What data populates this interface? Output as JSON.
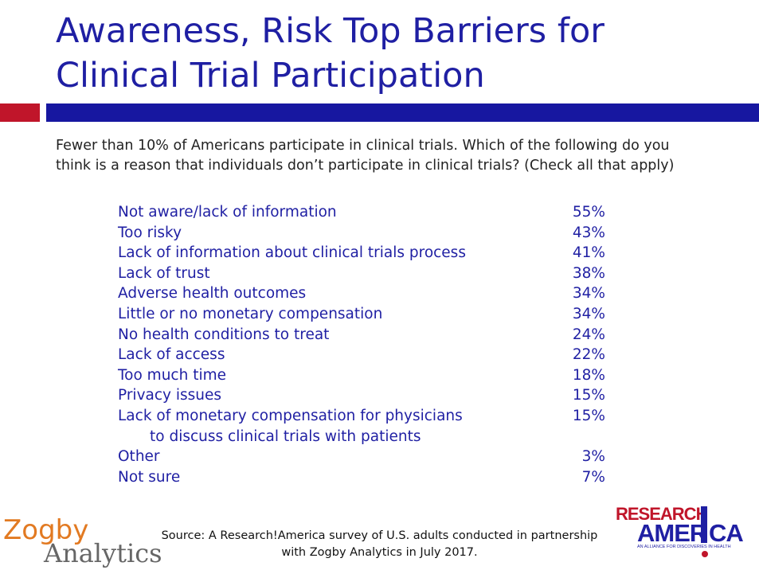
{
  "header": {
    "title_lines": [
      "Awareness, Risk Top Barriers for",
      "Clinical Trial Participation"
    ]
  },
  "question_lines": [
    "Fewer than 10% of Americans participate in clinical trials. Which of the following do you",
    "think is a reason that individuals don’t participate in clinical trials? (Check all that apply)"
  ],
  "table": {
    "rows": [
      {
        "label": [
          "Not aware/lack of information"
        ],
        "value": "55%"
      },
      {
        "label": [
          "Too risky"
        ],
        "value": "43%"
      },
      {
        "label": [
          "Lack of information about clinical trials process"
        ],
        "value": "41%"
      },
      {
        "label": [
          "Lack of trust"
        ],
        "value": "38%"
      },
      {
        "label": [
          "Adverse health outcomes"
        ],
        "value": "34%"
      },
      {
        "label": [
          "Little or no monetary compensation"
        ],
        "value": "34%"
      },
      {
        "label": [
          "No health conditions to treat"
        ],
        "value": "24%"
      },
      {
        "label": [
          "Lack of access"
        ],
        "value": "22%"
      },
      {
        "label": [
          "Too much time"
        ],
        "value": "18%"
      },
      {
        "label": [
          "Privacy issues"
        ],
        "value": "15%"
      },
      {
        "label": [
          "Lack of monetary compensation for physicians",
          "to discuss clinical trials with patients"
        ],
        "value": "15%"
      },
      {
        "label": [
          "Other"
        ],
        "value": "3%"
      },
      {
        "label": [
          "Not sure"
        ],
        "value": "7%"
      }
    ]
  },
  "footer": {
    "source_lines": [
      "Source: A Research!America survey of U.S. adults conducted in partnership",
      "with Zogby Analytics in July 2017."
    ],
    "zogby_logo": [
      "Zogby",
      "Analytics"
    ],
    "ra_logo": {
      "top": "RESEARCH",
      "left": "AMER",
      "right": "CA",
      "tagline": "AN ALLIANCE FOR DISCOVERIES IN HEALTH"
    }
  }
}
